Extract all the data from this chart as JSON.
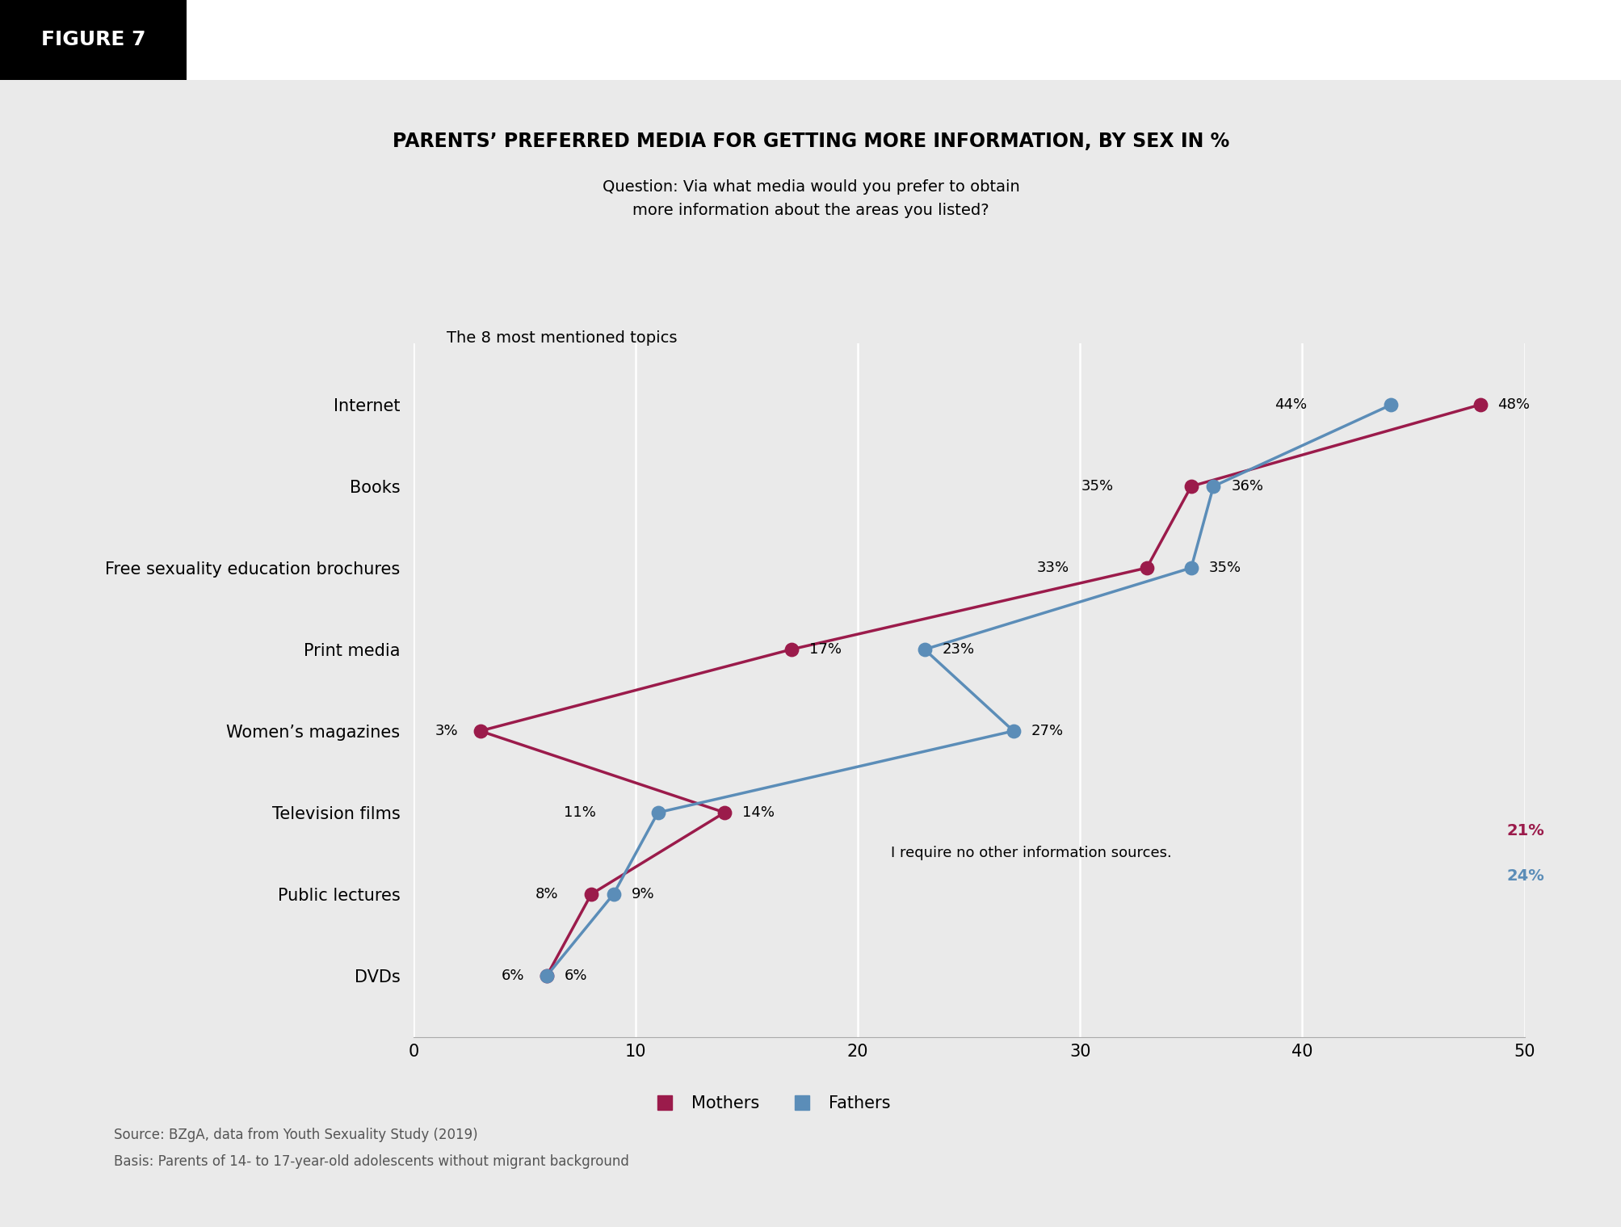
{
  "title": "PARENTS’ PREFERRED MEDIA FOR GETTING MORE INFORMATION, BY SEX IN %",
  "subtitle": "Question: Via what media would you prefer to obtain\nmore information about the areas you listed?",
  "topics_label": "The 8 most mentioned topics",
  "categories": [
    "DVDs",
    "Public lectures",
    "Television films",
    "Women’s magazines",
    "Print media",
    "Free sexuality education brochures",
    "Books",
    "Internet"
  ],
  "mothers_values": [
    6,
    8,
    14,
    3,
    17,
    33,
    35,
    48
  ],
  "fathers_values": [
    6,
    9,
    11,
    27,
    23,
    35,
    36,
    44
  ],
  "mothers_labels": [
    "6%",
    "8%",
    "14%",
    "3%",
    "17%",
    "33%",
    "35%",
    "48%"
  ],
  "fathers_labels": [
    "6%",
    "9%",
    "11%",
    "27%",
    "23%",
    "35%",
    "36%",
    "44%"
  ],
  "mothers_color": "#9B1B4B",
  "fathers_color": "#5B8DB8",
  "xlim_min": 0,
  "xlim_max": 50,
  "xticks": [
    0,
    10,
    20,
    30,
    40,
    50
  ],
  "no_info_text": "I require no other information sources.",
  "no_info_mothers": "21%",
  "no_info_fathers": "24%",
  "legend_mothers": "Mothers",
  "legend_fathers": "Fathers",
  "source_line1": "Source: BZgA, data from Youth Sexuality Study (2019)",
  "source_line2": "Basis: Parents of 14- to 17-year-old adolescents without migrant background",
  "figure_label": "FIGURE 7",
  "bg_color": "#EAEAEA",
  "header_bg": "#FFFFFF",
  "marker_size": 140,
  "line_width": 2.5
}
